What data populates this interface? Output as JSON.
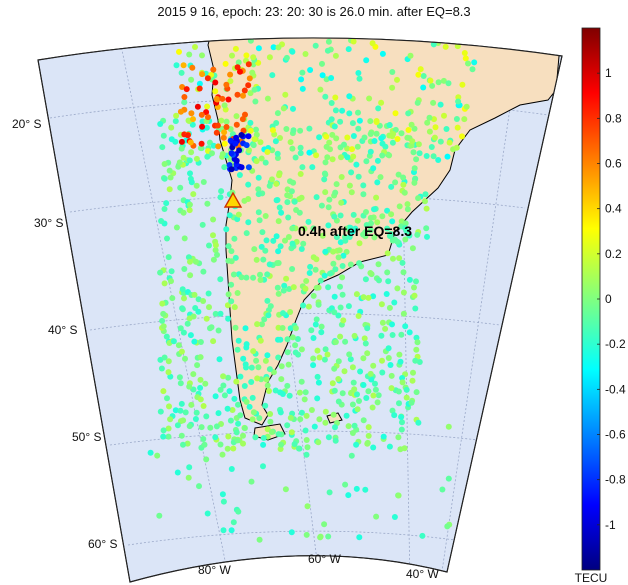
{
  "title": "2015  9 16, epoch: 23: 20: 30   is 26.0 min. after EQ=8.3",
  "annotation": "0.4h after EQ=8.3",
  "lat_labels": [
    "20° S",
    "30° S",
    "40° S",
    "50° S",
    "60° S"
  ],
  "lon_labels": [
    "80° W",
    "60° W",
    "40° W"
  ],
  "colorbar": {
    "unit": "TECU",
    "range": [
      -1.2,
      1.2
    ],
    "ticks": [
      "1",
      "0.8",
      "0.6",
      "0.4",
      "0.2",
      "0",
      "-0.2",
      "-0.4",
      "-0.6",
      "-0.8",
      "-1"
    ],
    "tick_values": [
      1,
      0.8,
      0.6,
      0.4,
      0.2,
      0,
      -0.2,
      -0.4,
      -0.6,
      -0.8,
      -1
    ]
  },
  "colors": {
    "ocean": "#dbe5f7",
    "land": "#f7dfbf",
    "coast": "#000000"
  },
  "epicenter": {
    "symbol": "triangle",
    "color": "#ffd700"
  }
}
